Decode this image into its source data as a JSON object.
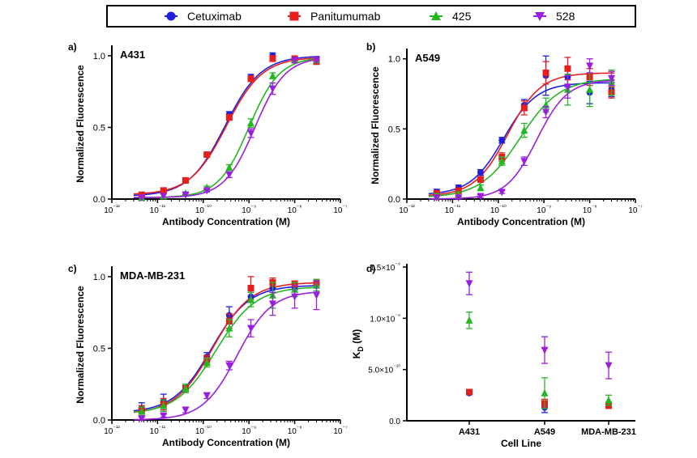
{
  "legend": [
    {
      "name": "Cetuximab",
      "color": "#1f1fe0",
      "marker": "circle"
    },
    {
      "name": "Panitumumab",
      "color": "#e61e1e",
      "marker": "square"
    },
    {
      "name": "425",
      "color": "#22b822",
      "marker": "triangle-up"
    },
    {
      "name": "528",
      "color": "#9b1ee0",
      "marker": "triangle-down"
    }
  ],
  "chart_data": [
    {
      "type": "scatter",
      "panel_label": "a)",
      "title": "A431",
      "xlabel": "Antibody Concentration (M)",
      "ylabel": "Normalized Fluorescence",
      "x_scale": "log",
      "xlim": [
        1e-12,
        1e-07
      ],
      "ylim": [
        0,
        1.05
      ],
      "x_ticks": [
        "10⁻¹²",
        "10⁻¹¹",
        "10⁻¹⁰",
        "10⁻⁹",
        "10⁻⁸",
        "10⁻⁷"
      ],
      "y_ticks": [
        "0.0",
        "0.5",
        "1.0"
      ],
      "fit": "sigmoid",
      "x": [
        4.5e-12,
        1.35e-11,
        4.1e-11,
        1.2e-10,
        3.7e-10,
        1.1e-09,
        3.3e-09,
        1e-08,
        3e-08
      ],
      "series": [
        {
          "name": "Cetuximab",
          "values": [
            0.02,
            0.05,
            0.13,
            0.31,
            0.59,
            0.85,
            1.0,
            0.98,
            0.96
          ],
          "errors": [
            0,
            0.01,
            0.01,
            0.01,
            0.02,
            0.02,
            0.02,
            0.01,
            0.02
          ],
          "fit": {
            "ec50": 3e-10,
            "bottom": 0.02,
            "top": 1.0,
            "hill": 1.1
          }
        },
        {
          "name": "Panitumumab",
          "values": [
            0.03,
            0.06,
            0.13,
            0.31,
            0.57,
            0.84,
            0.98,
            0.98,
            0.96
          ],
          "errors": [
            0,
            0.01,
            0.01,
            0.01,
            0.02,
            0.02,
            0.02,
            0.01,
            0.02
          ],
          "fit": {
            "ec50": 3.2e-10,
            "bottom": 0.03,
            "top": 0.99,
            "hill": 1.1
          }
        },
        {
          "name": "425",
          "values": [
            0.01,
            0.02,
            0.04,
            0.08,
            0.22,
            0.53,
            0.86,
            0.97,
            0.97
          ],
          "errors": [
            0,
            0,
            0.01,
            0.01,
            0.02,
            0.03,
            0.02,
            0.02,
            0.01
          ],
          "fit": {
            "ec50": 1e-09,
            "bottom": 0.01,
            "top": 0.99,
            "hill": 1.3
          }
        },
        {
          "name": "528",
          "values": [
            0.01,
            0.02,
            0.03,
            0.06,
            0.17,
            0.46,
            0.77,
            0.97,
            0.97
          ],
          "errors": [
            0,
            0,
            0.01,
            0.01,
            0.02,
            0.03,
            0.04,
            0.02,
            0.01
          ],
          "fit": {
            "ec50": 1.35e-09,
            "bottom": 0.01,
            "top": 0.99,
            "hill": 1.3
          }
        }
      ]
    },
    {
      "type": "scatter",
      "panel_label": "b)",
      "title": "A549",
      "xlabel": "Antibody Concentration (M)",
      "ylabel": "Normalized Fluorescence",
      "x_scale": "log",
      "xlim": [
        1e-12,
        1e-07
      ],
      "ylim": [
        0,
        1.05
      ],
      "x_ticks": [
        "10⁻¹²",
        "10⁻¹¹",
        "10⁻¹⁰",
        "10⁻⁹",
        "10⁻⁸",
        "10⁻⁷"
      ],
      "y_ticks": [
        "0.0",
        "0.5",
        "1.0"
      ],
      "fit": "sigmoid",
      "x": [
        4.5e-12,
        1.35e-11,
        4.1e-11,
        1.2e-10,
        3.7e-10,
        1.1e-09,
        3.3e-09,
        1e-08,
        3e-08
      ],
      "series": [
        {
          "name": "Cetuximab",
          "values": [
            0.05,
            0.08,
            0.19,
            0.42,
            0.67,
            0.88,
            0.87,
            0.76,
            0.78
          ],
          "errors": [
            0.02,
            0.02,
            0.02,
            0.02,
            0.04,
            0.14,
            0.07,
            0.08,
            0.05
          ],
          "fit": {
            "ec50": 1.3e-10,
            "bottom": 0.03,
            "top": 0.83,
            "hill": 1.2
          }
        },
        {
          "name": "Panitumumab",
          "values": [
            0.04,
            0.06,
            0.14,
            0.3,
            0.65,
            0.9,
            0.93,
            0.87,
            0.76
          ],
          "errors": [
            0.02,
            0.02,
            0.02,
            0.03,
            0.05,
            0.08,
            0.08,
            0.06,
            0.04
          ],
          "fit": {
            "ec50": 1.6e-10,
            "bottom": 0.02,
            "top": 0.9,
            "hill": 1.2
          }
        },
        {
          "name": "425",
          "values": [
            0.02,
            0.03,
            0.08,
            0.27,
            0.49,
            0.67,
            0.78,
            0.78,
            0.83
          ],
          "errors": [
            0.02,
            0.02,
            0.02,
            0.03,
            0.05,
            0.05,
            0.11,
            0.12,
            0.09
          ],
          "fit": {
            "ec50": 3e-10,
            "bottom": 0.01,
            "top": 0.86,
            "hill": 1.0
          }
        },
        {
          "name": "528",
          "values": [
            0.01,
            0.01,
            0.02,
            0.05,
            0.27,
            0.62,
            0.8,
            0.95,
            0.86
          ],
          "errors": [
            0.01,
            0.01,
            0.01,
            0.01,
            0.03,
            0.04,
            0.08,
            0.05,
            0.05
          ],
          "fit": {
            "ec50": 7e-10,
            "bottom": 0.0,
            "top": 0.85,
            "hill": 1.3
          }
        }
      ]
    },
    {
      "type": "scatter",
      "panel_label": "c)",
      "title": "MDA-MB-231",
      "xlabel": "Antibody Concentration (M)",
      "ylabel": "Normalized Fluorescence",
      "x_scale": "log",
      "xlim": [
        1e-12,
        1e-07
      ],
      "ylim": [
        0,
        1.05
      ],
      "x_ticks": [
        "10⁻¹²",
        "10⁻¹¹",
        "10⁻¹⁰",
        "10⁻⁹",
        "10⁻⁸",
        "10⁻⁷"
      ],
      "y_ticks": [
        "0.0",
        "0.5",
        "1.0"
      ],
      "fit": "sigmoid",
      "x": [
        4.5e-12,
        1.35e-11,
        4.1e-11,
        1.2e-10,
        3.7e-10,
        1.1e-09,
        3.3e-09,
        1e-08,
        3e-08
      ],
      "series": [
        {
          "name": "Cetuximab",
          "values": [
            0.08,
            0.13,
            0.22,
            0.44,
            0.73,
            0.86,
            0.92,
            0.93,
            0.95
          ],
          "errors": [
            0.04,
            0.05,
            0.02,
            0.03,
            0.06,
            0.04,
            0.03,
            0.02,
            0.03
          ],
          "fit": {
            "ec50": 1.5e-10,
            "bottom": 0.05,
            "top": 0.94,
            "hill": 1.05
          }
        },
        {
          "name": "Panitumumab",
          "values": [
            0.07,
            0.11,
            0.22,
            0.42,
            0.69,
            0.92,
            0.96,
            0.95,
            0.96
          ],
          "errors": [
            0.03,
            0.04,
            0.02,
            0.03,
            0.05,
            0.08,
            0.03,
            0.02,
            0.02
          ],
          "fit": {
            "ec50": 1.6e-10,
            "bottom": 0.04,
            "top": 0.96,
            "hill": 1.05
          }
        },
        {
          "name": "425",
          "values": [
            0.06,
            0.1,
            0.22,
            0.4,
            0.64,
            0.84,
            0.87,
            0.91,
            0.94
          ],
          "errors": [
            0.03,
            0.04,
            0.03,
            0.03,
            0.06,
            0.05,
            0.09,
            0.05,
            0.04
          ],
          "fit": {
            "ec50": 1.9e-10,
            "bottom": 0.04,
            "top": 0.93,
            "hill": 1.0
          }
        },
        {
          "name": "528",
          "values": [
            0.01,
            0.03,
            0.07,
            0.17,
            0.38,
            0.64,
            0.81,
            0.86,
            0.87
          ],
          "errors": [
            0.01,
            0.01,
            0.02,
            0.02,
            0.03,
            0.06,
            0.08,
            0.08,
            0.1
          ],
          "fit": {
            "ec50": 5.5e-10,
            "bottom": 0.0,
            "top": 0.9,
            "hill": 1.15
          }
        }
      ]
    },
    {
      "type": "scatter",
      "panel_label": "d)",
      "title": "",
      "xlabel": "Cell Line",
      "ylabel": "K",
      "ylabel_sub": "D",
      "ylabel_suffix": " (M)",
      "categories": [
        "A431",
        "A549",
        "MDA-MB-231"
      ],
      "ylim": [
        0,
        1.5e-09
      ],
      "y_ticks": [
        "0.0",
        "5.0×10⁻¹⁰",
        "1.0×10⁻⁹",
        "1.5×10⁻⁹"
      ],
      "series": [
        {
          "name": "Cetuximab",
          "values": [
            2.7e-10,
            1.3e-10,
            1.5e-10
          ],
          "errors": [
            1.5e-11,
            5e-11,
            2.5e-11
          ]
        },
        {
          "name": "Panitumumab",
          "values": [
            2.8e-10,
            1.7e-10,
            1.5e-10
          ],
          "errors": [
            2e-11,
            4e-11,
            3e-11
          ]
        },
        {
          "name": "425",
          "values": [
            9.8e-10,
            2.7e-10,
            2e-10
          ],
          "errors": [
            8e-11,
            1.5e-10,
            5e-11
          ]
        },
        {
          "name": "528",
          "values": [
            1.34e-09,
            6.9e-10,
            5.4e-10
          ],
          "errors": [
            1.1e-10,
            1.3e-10,
            1.3e-10
          ]
        }
      ]
    }
  ]
}
